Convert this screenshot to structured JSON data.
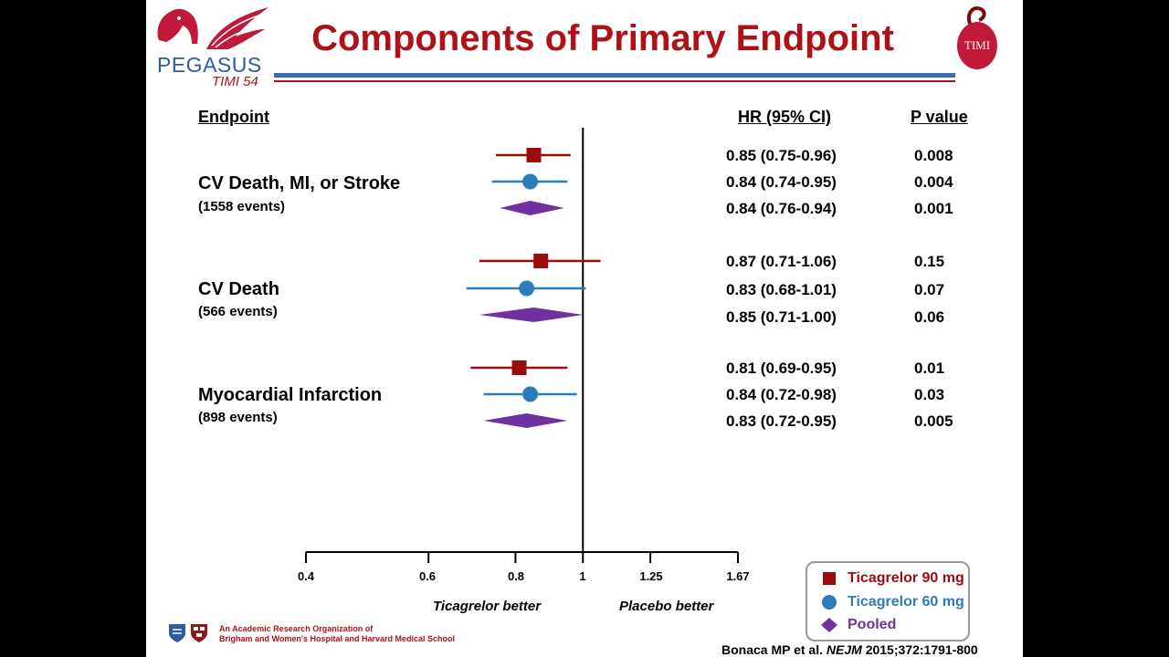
{
  "header": {
    "title": "Components of Primary Endpoint",
    "logo_left_name": "PEGASUS",
    "logo_left_sub": "TIMI 54",
    "logo_right_text": "TIMI"
  },
  "table_headers": {
    "endpoint": "Endpoint",
    "hr": "HR (95% CI)",
    "p": "P value"
  },
  "endpoints": [
    {
      "name": "CV Death, MI, or Stroke",
      "events": "(1558 events)"
    },
    {
      "name": "CV Death",
      "events": "(566 events)"
    },
    {
      "name": "Myocardial Infarction",
      "events": "(898 events)"
    }
  ],
  "chart_data": {
    "type": "forest",
    "x_scale": "log",
    "xlim": [
      0.4,
      1.67
    ],
    "x_ticks": [
      "0.4",
      "0.6",
      "0.8",
      "1",
      "1.25",
      "1.67"
    ],
    "reference_line": 1,
    "favor_left": "Ticagrelor better",
    "favor_right": "Placebo better",
    "series": [
      {
        "name": "Ticagrelor 90 mg",
        "marker": "square",
        "color": "#9b0d0d"
      },
      {
        "name": "Ticagrelor 60 mg",
        "marker": "circle",
        "color": "#2a7db8"
      },
      {
        "name": "Pooled",
        "marker": "diamond",
        "color": "#7030a0"
      }
    ],
    "groups": [
      {
        "endpoint": "CV Death, MI, or Stroke",
        "rows": [
          {
            "series": "Ticagrelor 90 mg",
            "hr": 0.85,
            "lo": 0.75,
            "hi": 0.96,
            "text": "0.85 (0.75-0.96)",
            "p": "0.008"
          },
          {
            "series": "Ticagrelor 60 mg",
            "hr": 0.84,
            "lo": 0.74,
            "hi": 0.95,
            "text": "0.84 (0.74-0.95)",
            "p": "0.004"
          },
          {
            "series": "Pooled",
            "hr": 0.84,
            "lo": 0.76,
            "hi": 0.94,
            "text": "0.84 (0.76-0.94)",
            "p": "0.001"
          }
        ]
      },
      {
        "endpoint": "CV Death",
        "rows": [
          {
            "series": "Ticagrelor 90 mg",
            "hr": 0.87,
            "lo": 0.71,
            "hi": 1.06,
            "text": "0.87 (0.71-1.06)",
            "p": "0.15"
          },
          {
            "series": "Ticagrelor 60 mg",
            "hr": 0.83,
            "lo": 0.68,
            "hi": 1.01,
            "text": "0.83 (0.68-1.01)",
            "p": "0.07"
          },
          {
            "series": "Pooled",
            "hr": 0.85,
            "lo": 0.71,
            "hi": 1.0,
            "text": "0.85 (0.71-1.00)",
            "p": "0.06"
          }
        ]
      },
      {
        "endpoint": "Myocardial Infarction",
        "rows": [
          {
            "series": "Ticagrelor 90 mg",
            "hr": 0.81,
            "lo": 0.69,
            "hi": 0.95,
            "text": "0.81 (0.69-0.95)",
            "p": "0.01"
          },
          {
            "series": "Ticagrelor 60 mg",
            "hr": 0.84,
            "lo": 0.72,
            "hi": 0.98,
            "text": "0.84 (0.72-0.98)",
            "p": "0.03"
          },
          {
            "series": "Pooled",
            "hr": 0.83,
            "lo": 0.72,
            "hi": 0.95,
            "text": "0.83 (0.72-0.95)",
            "p": "0.005"
          }
        ]
      }
    ]
  },
  "footer": {
    "org_line1": "An Academic Research Organization of",
    "org_line2": "Brigham and Women's Hospital and Harvard Medical School",
    "citation_authors": "Bonaca MP et al.",
    "citation_journal": "NEJM",
    "citation_ref": "2015;372:1791-800"
  }
}
